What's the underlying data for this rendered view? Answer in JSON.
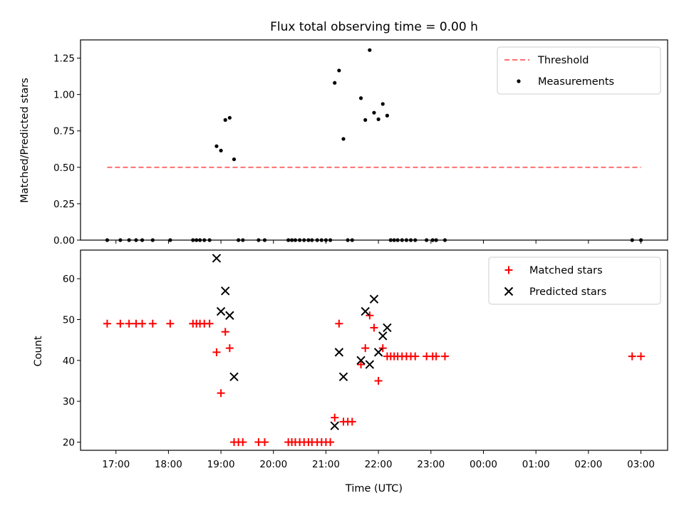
{
  "title": "Flux total observing time = 0.00 h",
  "colors": {
    "threshold": "#ff7070",
    "matched": "#ff0000",
    "predicted": "#000000",
    "measurement": "#000000"
  },
  "chart_data": [
    {
      "type": "scatter",
      "ylabel": "Matched/Predicted stars",
      "ylim": [
        0,
        1.375
      ],
      "yticks": [
        "0.00",
        "0.25",
        "0.50",
        "0.75",
        "1.00",
        "1.25"
      ],
      "ytick_values": [
        0,
        0.25,
        0.5,
        0.75,
        1.0,
        1.25
      ],
      "legend_position": "top-right",
      "legend": [
        "Threshold",
        "Measurements"
      ],
      "threshold": {
        "name": "Threshold",
        "y": 0.5,
        "x_range": [
          "16:50",
          "03:00"
        ],
        "style": "dashed"
      },
      "series": [
        {
          "name": "Measurements",
          "marker": "dot",
          "points": [
            [
              "16:50",
              0
            ],
            [
              "17:05",
              0
            ],
            [
              "17:15",
              0
            ],
            [
              "17:23",
              0
            ],
            [
              "17:30",
              0
            ],
            [
              "17:42",
              0
            ],
            [
              "18:02",
              0
            ],
            [
              "18:28",
              0
            ],
            [
              "18:32",
              0
            ],
            [
              "18:36",
              0
            ],
            [
              "18:41",
              0
            ],
            [
              "18:47",
              0
            ],
            [
              "18:55",
              0.645
            ],
            [
              "19:00",
              0.615
            ],
            [
              "19:05",
              0.825
            ],
            [
              "19:10",
              0.84
            ],
            [
              "19:15",
              0.555
            ],
            [
              "19:20",
              0
            ],
            [
              "19:25",
              0
            ],
            [
              "19:43",
              0
            ],
            [
              "19:50",
              0
            ],
            [
              "20:17",
              0
            ],
            [
              "20:21",
              0
            ],
            [
              "20:25",
              0
            ],
            [
              "20:30",
              0
            ],
            [
              "20:35",
              0
            ],
            [
              "20:40",
              0
            ],
            [
              "20:44",
              0
            ],
            [
              "20:50",
              0
            ],
            [
              "20:55",
              0
            ],
            [
              "21:00",
              0
            ],
            [
              "21:05",
              0
            ],
            [
              "21:10",
              1.08
            ],
            [
              "21:15",
              1.165
            ],
            [
              "21:20",
              0.695
            ],
            [
              "21:25",
              0
            ],
            [
              "21:30",
              0
            ],
            [
              "21:40",
              0.975
            ],
            [
              "21:45",
              0.825
            ],
            [
              "21:50",
              1.305
            ],
            [
              "21:55",
              0.875
            ],
            [
              "22:00",
              0.83
            ],
            [
              "22:05",
              0.935
            ],
            [
              "22:10",
              0.855
            ],
            [
              "22:14",
              0
            ],
            [
              "22:18",
              0
            ],
            [
              "22:22",
              0
            ],
            [
              "22:27",
              0
            ],
            [
              "22:32",
              0
            ],
            [
              "22:37",
              0
            ],
            [
              "22:42",
              0
            ],
            [
              "22:55",
              0
            ],
            [
              "23:02",
              0
            ],
            [
              "23:06",
              0
            ],
            [
              "23:16",
              0
            ],
            [
              "02:50",
              0
            ],
            [
              "03:00",
              0
            ]
          ]
        }
      ]
    },
    {
      "type": "scatter",
      "ylabel": "Count",
      "xlabel": "Time (UTC)",
      "ylim": [
        18,
        67
      ],
      "yticks": [
        "20",
        "30",
        "40",
        "50",
        "60"
      ],
      "ytick_values": [
        20,
        30,
        40,
        50,
        60
      ],
      "xticks": [
        "17:00",
        "18:00",
        "19:00",
        "20:00",
        "21:00",
        "22:00",
        "23:00",
        "00:00",
        "01:00",
        "02:00",
        "03:00"
      ],
      "legend_position": "top-right",
      "legend": [
        "Matched stars",
        "Predicted stars"
      ],
      "series": [
        {
          "name": "Matched stars",
          "marker": "plus",
          "points": [
            [
              "16:50",
              49
            ],
            [
              "17:05",
              49
            ],
            [
              "17:15",
              49
            ],
            [
              "17:23",
              49
            ],
            [
              "17:30",
              49
            ],
            [
              "17:42",
              49
            ],
            [
              "18:02",
              49
            ],
            [
              "18:28",
              49
            ],
            [
              "18:32",
              49
            ],
            [
              "18:36",
              49
            ],
            [
              "18:41",
              49
            ],
            [
              "18:47",
              49
            ],
            [
              "18:55",
              42
            ],
            [
              "19:00",
              32
            ],
            [
              "19:05",
              47
            ],
            [
              "19:10",
              43
            ],
            [
              "19:15",
              20
            ],
            [
              "19:20",
              20
            ],
            [
              "19:25",
              20
            ],
            [
              "19:43",
              20
            ],
            [
              "19:50",
              20
            ],
            [
              "20:17",
              20
            ],
            [
              "20:21",
              20
            ],
            [
              "20:25",
              20
            ],
            [
              "20:30",
              20
            ],
            [
              "20:35",
              20
            ],
            [
              "20:40",
              20
            ],
            [
              "20:44",
              20
            ],
            [
              "20:50",
              20
            ],
            [
              "20:55",
              20
            ],
            [
              "21:00",
              20
            ],
            [
              "21:05",
              20
            ],
            [
              "21:10",
              26
            ],
            [
              "21:15",
              49
            ],
            [
              "21:20",
              25
            ],
            [
              "21:25",
              25
            ],
            [
              "21:30",
              25
            ],
            [
              "21:40",
              39
            ],
            [
              "21:45",
              43
            ],
            [
              "21:50",
              51
            ],
            [
              "21:55",
              48
            ],
            [
              "22:00",
              35
            ],
            [
              "22:05",
              43
            ],
            [
              "22:10",
              41
            ],
            [
              "22:14",
              41
            ],
            [
              "22:18",
              41
            ],
            [
              "22:22",
              41
            ],
            [
              "22:27",
              41
            ],
            [
              "22:32",
              41
            ],
            [
              "22:37",
              41
            ],
            [
              "22:42",
              41
            ],
            [
              "22:55",
              41
            ],
            [
              "23:02",
              41
            ],
            [
              "23:06",
              41
            ],
            [
              "23:16",
              41
            ],
            [
              "02:50",
              41
            ],
            [
              "03:00",
              41
            ]
          ]
        },
        {
          "name": "Predicted stars",
          "marker": "x",
          "points": [
            [
              "18:55",
              65
            ],
            [
              "19:00",
              52
            ],
            [
              "19:05",
              57
            ],
            [
              "19:10",
              51
            ],
            [
              "19:15",
              36
            ],
            [
              "21:10",
              24
            ],
            [
              "21:15",
              42
            ],
            [
              "21:20",
              36
            ],
            [
              "21:40",
              40
            ],
            [
              "21:45",
              52
            ],
            [
              "21:50",
              39
            ],
            [
              "21:55",
              55
            ],
            [
              "22:00",
              42
            ],
            [
              "22:05",
              46
            ],
            [
              "22:10",
              48
            ]
          ]
        }
      ]
    }
  ]
}
